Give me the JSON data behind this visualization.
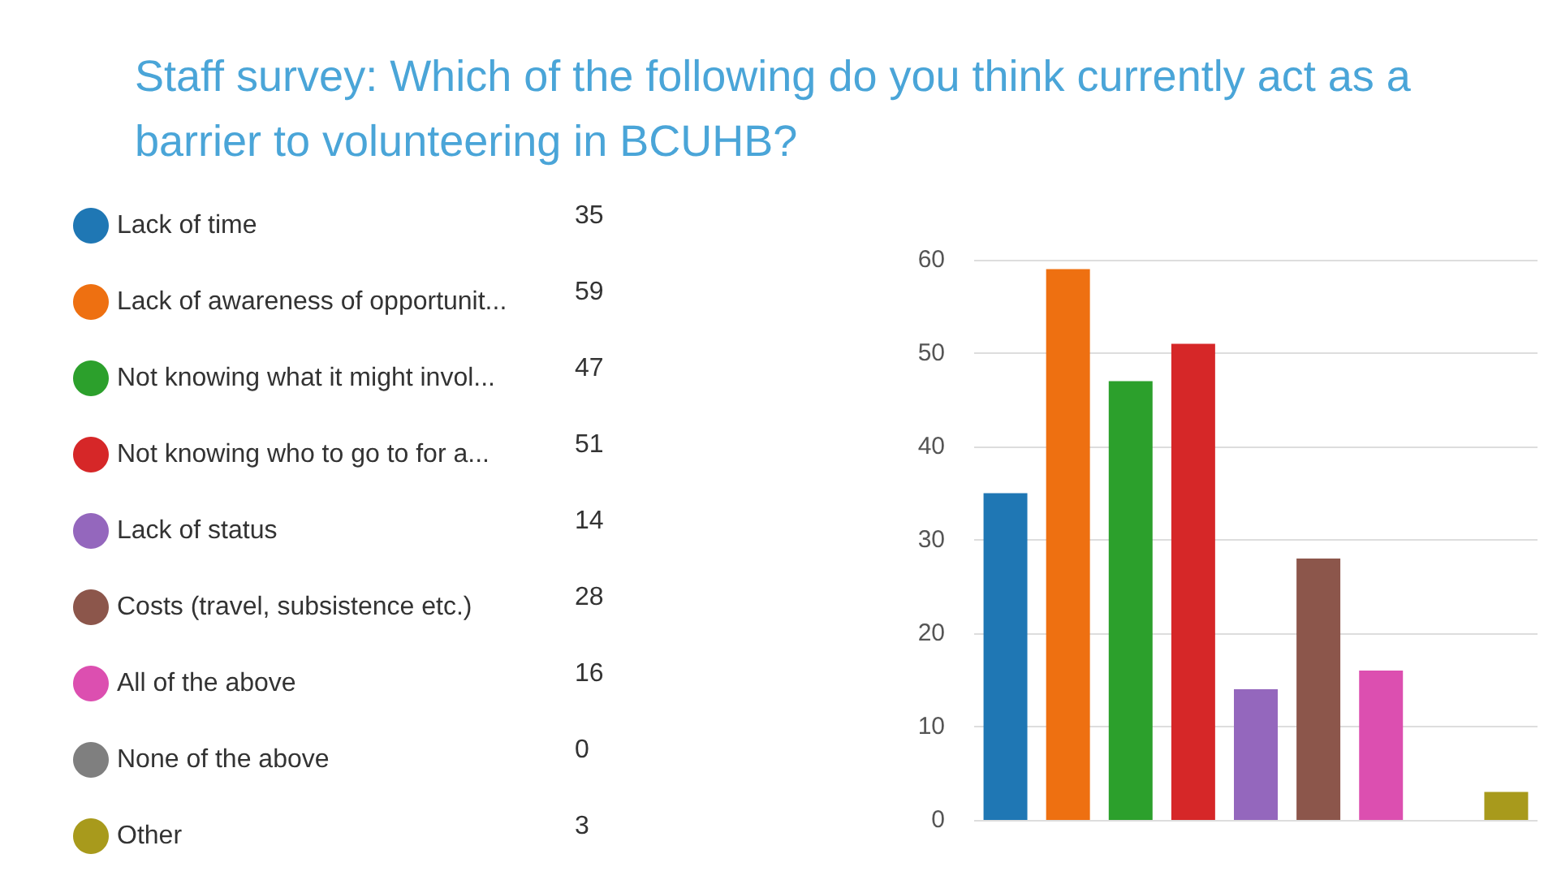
{
  "chart_data": {
    "type": "bar",
    "title": "Staff survey: Which of the following do you think currently act as a barrier to volunteering in BCUHB?",
    "categories": [
      null,
      null,
      null,
      null,
      null,
      null,
      null,
      null,
      null
    ],
    "series": [
      {
        "name": "Lack of time",
        "color": "#1f77b4",
        "values": [
          35,
          null,
          null,
          null,
          null,
          null,
          null,
          null,
          null
        ]
      },
      {
        "name": "Lack of awareness of opportunit...",
        "color": "#ee7011",
        "values": [
          null,
          59,
          null,
          null,
          null,
          null,
          null,
          null,
          null
        ]
      },
      {
        "name": "Not knowing what it might invol...",
        "color": "#2ca02c",
        "values": [
          null,
          null,
          47,
          null,
          null,
          null,
          null,
          null,
          null
        ]
      },
      {
        "name": "Not knowing who to go to for a...",
        "color": "#d62728",
        "values": [
          null,
          null,
          null,
          51,
          null,
          null,
          null,
          null,
          null
        ]
      },
      {
        "name": "Lack of status",
        "color": "#9467bd",
        "values": [
          null,
          null,
          null,
          null,
          14,
          null,
          null,
          null,
          null
        ]
      },
      {
        "name": "Costs (travel, subsistence etc.)",
        "color": "#8c564b",
        "values": [
          null,
          null,
          null,
          null,
          null,
          28,
          null,
          null,
          null
        ]
      },
      {
        "name": "All of the above",
        "color": "#dc4fb0",
        "values": [
          null,
          null,
          null,
          null,
          null,
          null,
          16,
          null,
          null
        ]
      },
      {
        "name": "None of the above",
        "color": "#7f7f7f",
        "values": [
          null,
          null,
          null,
          null,
          null,
          null,
          null,
          0,
          null
        ]
      },
      {
        "name": "Other",
        "color": "#a89a1c",
        "values": [
          null,
          null,
          null,
          null,
          null,
          null,
          null,
          null,
          3
        ]
      }
    ],
    "stacked": true,
    "ylim": [
      0,
      60
    ],
    "yticks": [
      0,
      10,
      20,
      30,
      40,
      50,
      60
    ],
    "grid": "y",
    "legend": "left",
    "annotations": [
      "35",
      "59",
      "47",
      "51",
      "14",
      "28",
      "16",
      "0",
      "3"
    ]
  }
}
